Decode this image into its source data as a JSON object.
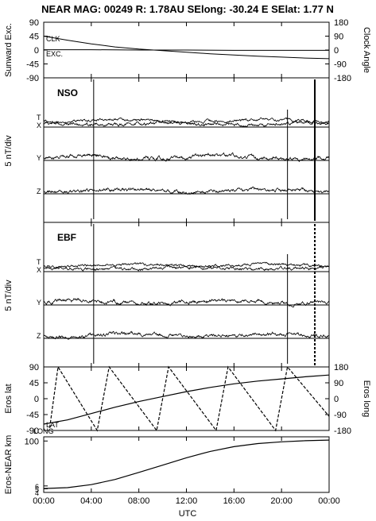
{
  "title": "NEAR MAG: 00249  R: 1.78AU  SElong: -30.24 E  SElat:   1.77 N",
  "chart_data": [
    {
      "type": "line",
      "panel": "angles",
      "ylabel_left": "Sunward Exc.",
      "ylabel_right": "Clock Angle",
      "yticks_left": [
        "90",
        "45",
        "0",
        "-45",
        "-90"
      ],
      "yticks_right": [
        "180",
        "90",
        "0",
        "-90",
        "-180"
      ],
      "ylim": [
        -90,
        90
      ],
      "series": [
        {
          "name": "CLK",
          "x": [
            0,
            2,
            4,
            6,
            8,
            10,
            12,
            14,
            16,
            18,
            20,
            22,
            24
          ],
          "y": [
            45,
            32,
            20,
            10,
            3,
            -2,
            -7,
            -12,
            -16,
            -20,
            -23,
            -26,
            -28
          ]
        },
        {
          "name": "EXC.",
          "x": [
            0,
            4,
            8,
            12,
            16,
            20,
            24
          ],
          "y": [
            1,
            1,
            0,
            0,
            -1,
            -1,
            -1
          ]
        }
      ]
    },
    {
      "type": "line",
      "panel": "NSO",
      "label": "NSO",
      "ylabel": "5 nT/div",
      "traces": [
        "T",
        "X",
        "Y",
        "Z"
      ]
    },
    {
      "type": "line",
      "panel": "EBF",
      "label": "EBF",
      "ylabel": "5 nT/div",
      "traces": [
        "T",
        "X",
        "Y",
        "Z"
      ]
    },
    {
      "type": "line",
      "panel": "eros-position",
      "ylabel_left": "Eros lat",
      "ylabel_right": "Eros long",
      "yticks_left": [
        "90",
        "45",
        "0",
        "-45",
        "-90"
      ],
      "yticks_right": [
        "180",
        "90",
        "0",
        "-90",
        "-180"
      ],
      "ylim": [
        -90,
        90
      ],
      "series": [
        {
          "name": "LAT",
          "x": [
            0,
            2,
            4,
            6,
            8,
            10,
            12,
            14,
            16,
            18,
            20,
            22,
            24
          ],
          "y": [
            -72,
            -60,
            -42,
            -24,
            -8,
            6,
            20,
            32,
            42,
            50,
            56,
            62,
            67
          ]
        },
        {
          "name": "LONG",
          "x": [
            0.5,
            1.2,
            4.5,
            5.5,
            9.5,
            10.5,
            14.5,
            15.5,
            19.5,
            20.5,
            24
          ],
          "y": [
            -165,
            180,
            -180,
            180,
            -180,
            180,
            -180,
            180,
            -180,
            180,
            -100
          ]
        }
      ]
    },
    {
      "type": "line",
      "panel": "distance",
      "ylabel": "Eros-NEAR km",
      "yscale": "log",
      "yticks": [
        "100",
        "6",
        "5",
        "4"
      ],
      "series": [
        {
          "name": "range",
          "x": [
            0,
            2,
            4,
            6,
            8,
            10,
            12,
            14,
            16,
            18,
            20,
            22,
            24
          ],
          "y": [
            5.1,
            5.4,
            6.5,
            9,
            14,
            22,
            35,
            52,
            70,
            85,
            95,
            102,
            106
          ]
        }
      ]
    }
  ],
  "xaxis": {
    "label": "UTC",
    "ticks": [
      "00:00",
      "04:00",
      "08:00",
      "12:00",
      "16:00",
      "20:00",
      "00:00"
    ],
    "range": [
      0,
      24
    ]
  },
  "labels": {
    "clk": "CLK",
    "exc": "EXC.",
    "lat": "LAT",
    "long": "LONG",
    "t": "T",
    "x": "X",
    "y": "Y",
    "z": "Z"
  }
}
